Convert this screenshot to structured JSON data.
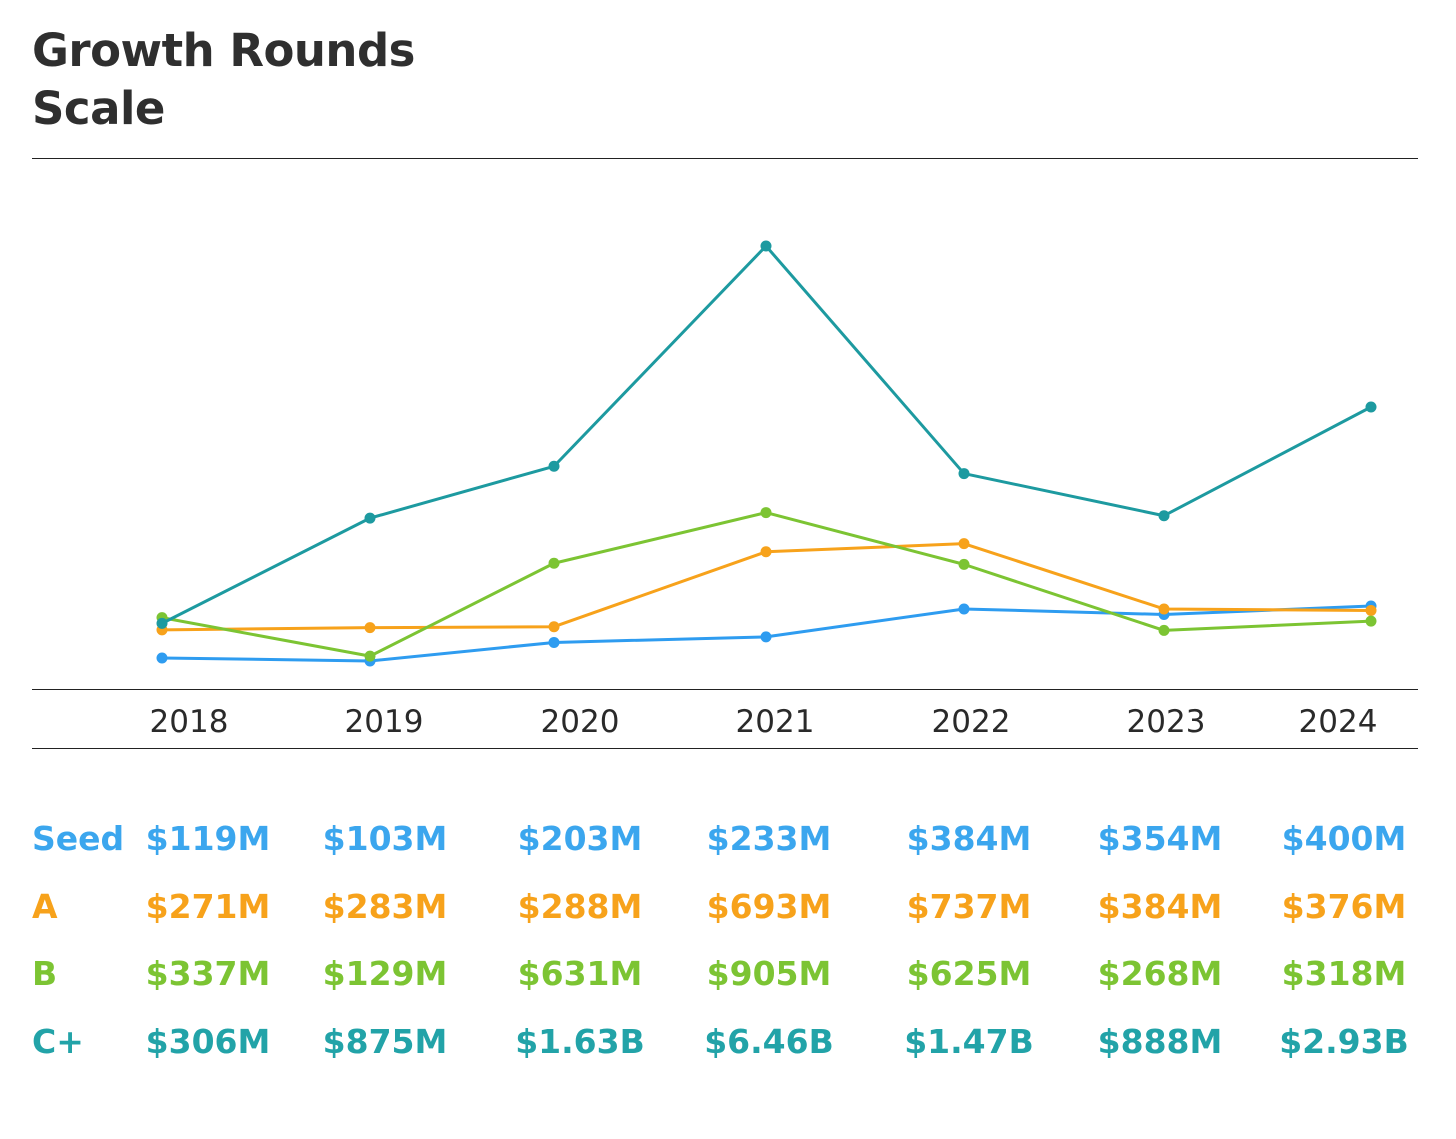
{
  "title_line1": "Growth Rounds",
  "title_line2": "Scale",
  "chart_data": {
    "type": "line",
    "title": "Growth Rounds Scale",
    "x": [
      "2018",
      "2019",
      "2020",
      "2021",
      "2022",
      "2023",
      "2024"
    ],
    "xlabel": "",
    "ylabel": "",
    "y_unit": "$M",
    "ylim": [
      0,
      7000
    ],
    "y_axis_shown": false,
    "grid": false,
    "legend": "table below chart",
    "series": [
      {
        "name": "Seed",
        "color": "#2e9cf0",
        "values": [
          119,
          103,
          203,
          233,
          384,
          354,
          400
        ]
      },
      {
        "name": "A",
        "color": "#f7a21b",
        "values": [
          271,
          283,
          288,
          693,
          737,
          384,
          376
        ]
      },
      {
        "name": "B",
        "color": "#7cc433",
        "values": [
          337,
          129,
          631,
          905,
          625,
          268,
          318
        ]
      },
      {
        "name": "C+",
        "color": "#1d9aa0",
        "values": [
          306,
          875,
          1630,
          6460,
          1470,
          888,
          2930
        ]
      }
    ]
  },
  "table": {
    "rows": [
      {
        "label": "Seed",
        "color": "#3ba6ee",
        "cells": [
          "$119M",
          "$103M",
          "$203M",
          "$233M",
          "$384M",
          "$354M",
          "$400M"
        ]
      },
      {
        "label": "A",
        "color": "#f7a21b",
        "cells": [
          "$271M",
          "$283M",
          "$288M",
          "$693M",
          "$737M",
          "$384M",
          "$376M"
        ]
      },
      {
        "label": "B",
        "color": "#7cc433",
        "cells": [
          "$337M",
          "$129M",
          "$631M",
          "$905M",
          "$625M",
          "$268M",
          "$318M"
        ]
      },
      {
        "label": "C+",
        "color": "#22a3a8",
        "cells": [
          "$306M",
          "$875M",
          "$1.63B",
          "$6.46B",
          "$1.47B",
          "$888M",
          "$2.93B"
        ]
      }
    ]
  }
}
